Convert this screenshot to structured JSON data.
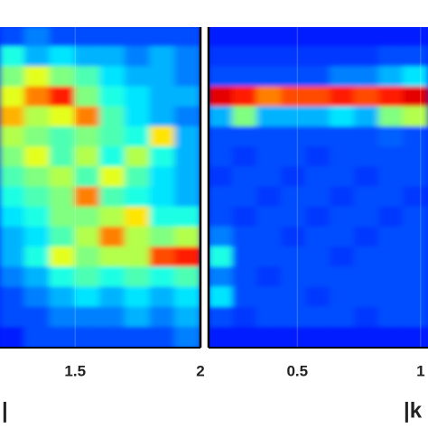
{
  "chart_data": [
    {
      "type": "heatmap",
      "colormap": "jet",
      "grid": true,
      "xlim": [
        1.2,
        2
      ],
      "xticks": [
        1.5,
        2
      ],
      "x_label": "|",
      "values": [
        [
          0.2,
          0.25,
          0.2,
          0.2,
          0.2,
          0.2,
          0.2,
          0.2
        ],
        [
          0.4,
          0.3,
          0.35,
          0.3,
          0.3,
          0.25,
          0.3,
          0.25
        ],
        [
          0.5,
          0.6,
          0.5,
          0.45,
          0.35,
          0.3,
          0.3,
          0.25
        ],
        [
          0.6,
          0.75,
          0.85,
          0.5,
          0.4,
          0.35,
          0.3,
          0.3
        ],
        [
          0.7,
          0.55,
          0.6,
          0.75,
          0.45,
          0.35,
          0.3,
          0.25
        ],
        [
          0.55,
          0.5,
          0.45,
          0.5,
          0.45,
          0.4,
          0.65,
          0.3
        ],
        [
          0.5,
          0.6,
          0.45,
          0.55,
          0.4,
          0.55,
          0.4,
          0.3
        ],
        [
          0.45,
          0.5,
          0.55,
          0.45,
          0.6,
          0.45,
          0.35,
          0.3
        ],
        [
          0.4,
          0.45,
          0.5,
          0.75,
          0.45,
          0.4,
          0.35,
          0.3
        ],
        [
          0.35,
          0.4,
          0.5,
          0.5,
          0.55,
          0.65,
          0.4,
          0.4
        ],
        [
          0.3,
          0.35,
          0.45,
          0.55,
          0.75,
          0.55,
          0.5,
          0.55
        ],
        [
          0.3,
          0.4,
          0.6,
          0.5,
          0.55,
          0.55,
          0.8,
          0.85
        ],
        [
          0.25,
          0.3,
          0.4,
          0.45,
          0.4,
          0.45,
          0.4,
          0.45
        ],
        [
          0.2,
          0.25,
          0.3,
          0.35,
          0.3,
          0.35,
          0.3,
          0.35
        ],
        [
          0.2,
          0.2,
          0.25,
          0.25,
          0.25,
          0.3,
          0.25,
          0.3
        ],
        [
          0.15,
          0.2,
          0.2,
          0.2,
          0.2,
          0.2,
          0.2,
          0.25
        ]
      ]
    },
    {
      "type": "heatmap",
      "colormap": "jet",
      "grid": true,
      "xlim": [
        0.14,
        1.03
      ],
      "xticks": [
        0.5,
        1
      ],
      "x_label": "|k",
      "values": [
        [
          0.15,
          0.15,
          0.15,
          0.15,
          0.15,
          0.15,
          0.15,
          0.15,
          0.15
        ],
        [
          0.18,
          0.18,
          0.18,
          0.18,
          0.18,
          0.18,
          0.18,
          0.2,
          0.2
        ],
        [
          0.2,
          0.2,
          0.2,
          0.2,
          0.2,
          0.25,
          0.25,
          0.3,
          0.35
        ],
        [
          0.9,
          0.85,
          0.75,
          0.8,
          0.8,
          0.85,
          0.8,
          0.85,
          0.9
        ],
        [
          0.3,
          0.5,
          0.3,
          0.3,
          0.3,
          0.35,
          0.3,
          0.5,
          0.55
        ],
        [
          0.2,
          0.2,
          0.2,
          0.2,
          0.2,
          0.2,
          0.2,
          0.22,
          0.2
        ],
        [
          0.2,
          0.18,
          0.2,
          0.2,
          0.18,
          0.2,
          0.2,
          0.2,
          0.2
        ],
        [
          0.18,
          0.2,
          0.2,
          0.18,
          0.2,
          0.2,
          0.18,
          0.2,
          0.2
        ],
        [
          0.2,
          0.2,
          0.18,
          0.2,
          0.2,
          0.18,
          0.2,
          0.2,
          0.18
        ],
        [
          0.2,
          0.18,
          0.2,
          0.2,
          0.18,
          0.2,
          0.2,
          0.18,
          0.2
        ],
        [
          0.25,
          0.2,
          0.2,
          0.18,
          0.2,
          0.2,
          0.18,
          0.2,
          0.2
        ],
        [
          0.4,
          0.2,
          0.2,
          0.2,
          0.2,
          0.18,
          0.2,
          0.2,
          0.2
        ],
        [
          0.25,
          0.2,
          0.18,
          0.2,
          0.2,
          0.2,
          0.2,
          0.2,
          0.2
        ],
        [
          0.35,
          0.2,
          0.2,
          0.2,
          0.18,
          0.2,
          0.2,
          0.2,
          0.2
        ],
        [
          0.2,
          0.18,
          0.2,
          0.2,
          0.2,
          0.2,
          0.18,
          0.2,
          0.2
        ],
        [
          0.15,
          0.15,
          0.15,
          0.15,
          0.15,
          0.15,
          0.15,
          0.15,
          0.15
        ]
      ]
    }
  ]
}
